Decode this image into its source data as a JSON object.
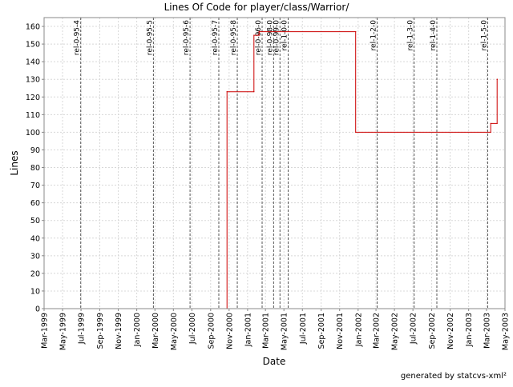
{
  "chart_data": {
    "type": "line",
    "title": "Lines Of Code for player/class/Warrior/",
    "xlabel": "Date",
    "ylabel": "Lines",
    "footer": "generated by statcvs-xml²",
    "grid": true,
    "line_color": "#cc0000",
    "tag_line_color": "#555555",
    "x_tick_labels": [
      "Mar-1999",
      "May-1999",
      "Jul-1999",
      "Sep-1999",
      "Nov-1999",
      "Jan-2000",
      "Mar-2000",
      "May-2000",
      "Jul-2000",
      "Sep-2000",
      "Nov-2000",
      "Jan-2001",
      "Mar-2001",
      "May-2001",
      "Jul-2001",
      "Sep-2001",
      "Nov-2001",
      "Jan-2002",
      "Mar-2002",
      "May-2002",
      "Jul-2002",
      "Sep-2002",
      "Nov-2002",
      "Jan-2003",
      "Mar-2003",
      "May-2003"
    ],
    "x_range": [
      "1999-03-01",
      "2003-05-01"
    ],
    "ylim": [
      0,
      165
    ],
    "y_ticks": [
      0,
      10,
      20,
      30,
      40,
      50,
      60,
      70,
      80,
      90,
      100,
      110,
      120,
      130,
      140,
      150,
      160
    ],
    "tags": [
      {
        "name": "rel-0-95-4",
        "date": "1999-06-30"
      },
      {
        "name": "rel-0-95-5",
        "date": "2000-02-25"
      },
      {
        "name": "rel-0-95-6",
        "date": "2000-06-25"
      },
      {
        "name": "rel-0-95-7",
        "date": "2000-09-28"
      },
      {
        "name": "rel-0-95-8",
        "date": "2000-11-28"
      },
      {
        "name": "rel-0-96-0",
        "date": "2001-02-18"
      },
      {
        "name": "rel-0-98-0",
        "date": "2001-03-28"
      },
      {
        "name": "rel-0-99-0",
        "date": "2001-04-18"
      },
      {
        "name": "rel-1-0-0",
        "date": "2001-05-15"
      },
      {
        "name": "rel-1-2-0",
        "date": "2002-03-05"
      },
      {
        "name": "rel-1-3-0",
        "date": "2002-07-05"
      },
      {
        "name": "rel-1-4-0",
        "date": "2002-09-18"
      },
      {
        "name": "rel-1-5-0",
        "date": "2003-03-05"
      }
    ],
    "series": [
      {
        "points": [
          {
            "x": "1999-03-01",
            "y": 0
          },
          {
            "x": "2000-10-25",
            "y": 0
          },
          {
            "x": "2000-10-25",
            "y": 123
          },
          {
            "x": "2001-01-22",
            "y": 123
          },
          {
            "x": "2001-01-22",
            "y": 155
          },
          {
            "x": "2001-02-08",
            "y": 155
          },
          {
            "x": "2001-02-08",
            "y": 157
          },
          {
            "x": "2001-12-24",
            "y": 157
          },
          {
            "x": "2001-12-24",
            "y": 100
          },
          {
            "x": "2003-03-15",
            "y": 100
          },
          {
            "x": "2003-03-15",
            "y": 105
          },
          {
            "x": "2003-04-05",
            "y": 105
          },
          {
            "x": "2003-04-05",
            "y": 130
          },
          {
            "x": "2003-04-06",
            "y": 130
          }
        ]
      }
    ]
  }
}
